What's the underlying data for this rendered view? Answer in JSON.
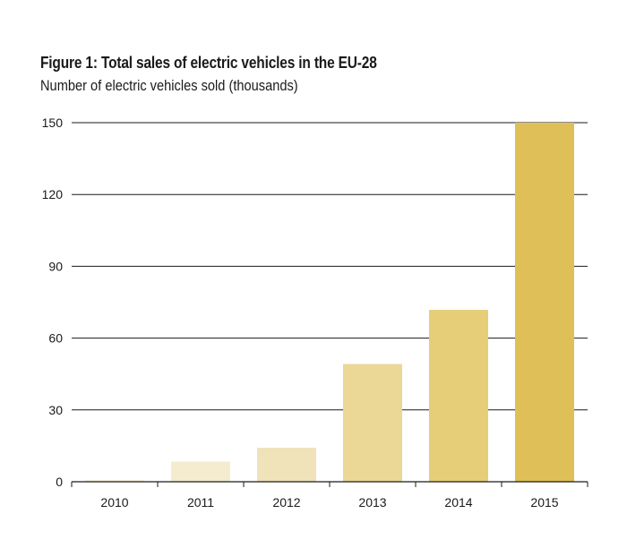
{
  "chart_data": {
    "type": "bar",
    "title": "Figure 1: Total sales of electric vehicles in the EU-28",
    "subtitle": "Number of electric vehicles sold (thousands)",
    "categories": [
      "2010",
      "2011",
      "2012",
      "2013",
      "2014",
      "2015"
    ],
    "values": [
      0.7,
      8.4,
      14.2,
      49.2,
      71.8,
      150.0
    ],
    "colors": [
      "#f7f0d8",
      "#f5eccf",
      "#f0e2b9",
      "#ebd896",
      "#e6cd78",
      "#dfbf57"
    ],
    "yticks": [
      0,
      30,
      60,
      90,
      120,
      150
    ],
    "ylim": [
      0,
      150
    ],
    "grid": true,
    "xlabel": "",
    "ylabel": ""
  }
}
